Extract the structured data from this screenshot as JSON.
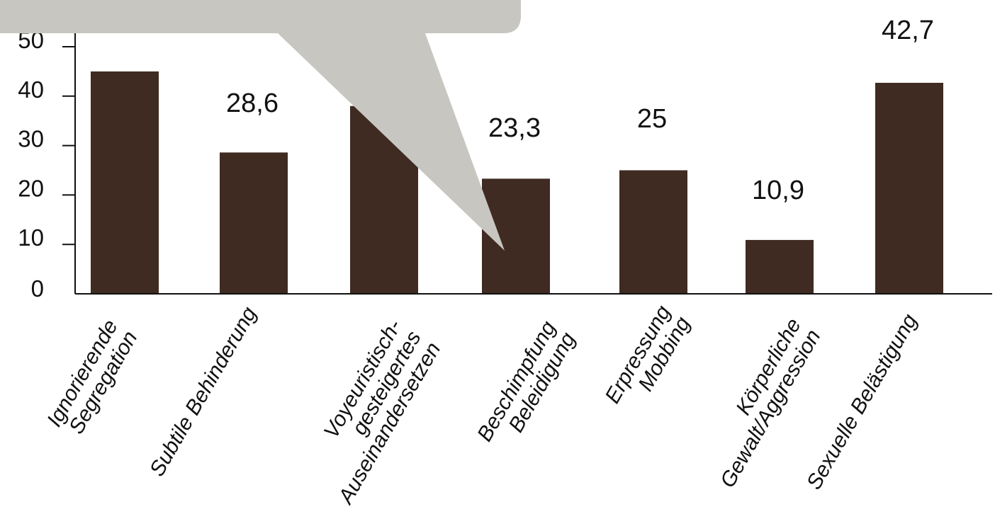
{
  "chart_data": {
    "type": "bar",
    "categories": [
      [
        "Ignorierende",
        "Segregation"
      ],
      [
        "Subtile Behinderung"
      ],
      [
        "Voyeuristisch-",
        "gesteigertes",
        "Auseinandersetzen"
      ],
      [
        "Beschimpfung",
        "Beleidigung"
      ],
      [
        "Erpressung",
        "Mobbing"
      ],
      [
        "Körperliche",
        "Gewalt/Aggression"
      ],
      [
        "Sexuelle Belästigung"
      ]
    ],
    "values": [
      45,
      28.6,
      38,
      23.3,
      25,
      10.9,
      42.7
    ],
    "data_labels": [
      "",
      "28,6",
      "",
      "23,3",
      "25",
      "10,9",
      "42,7"
    ],
    "yticks": [
      "0",
      "10",
      "20",
      "30",
      "40",
      "50"
    ],
    "ylim": [
      0,
      50
    ],
    "bar_color": "#3f2b22",
    "callout_color": "#c8c6c1",
    "title": "",
    "xlabel": "",
    "ylabel": ""
  }
}
